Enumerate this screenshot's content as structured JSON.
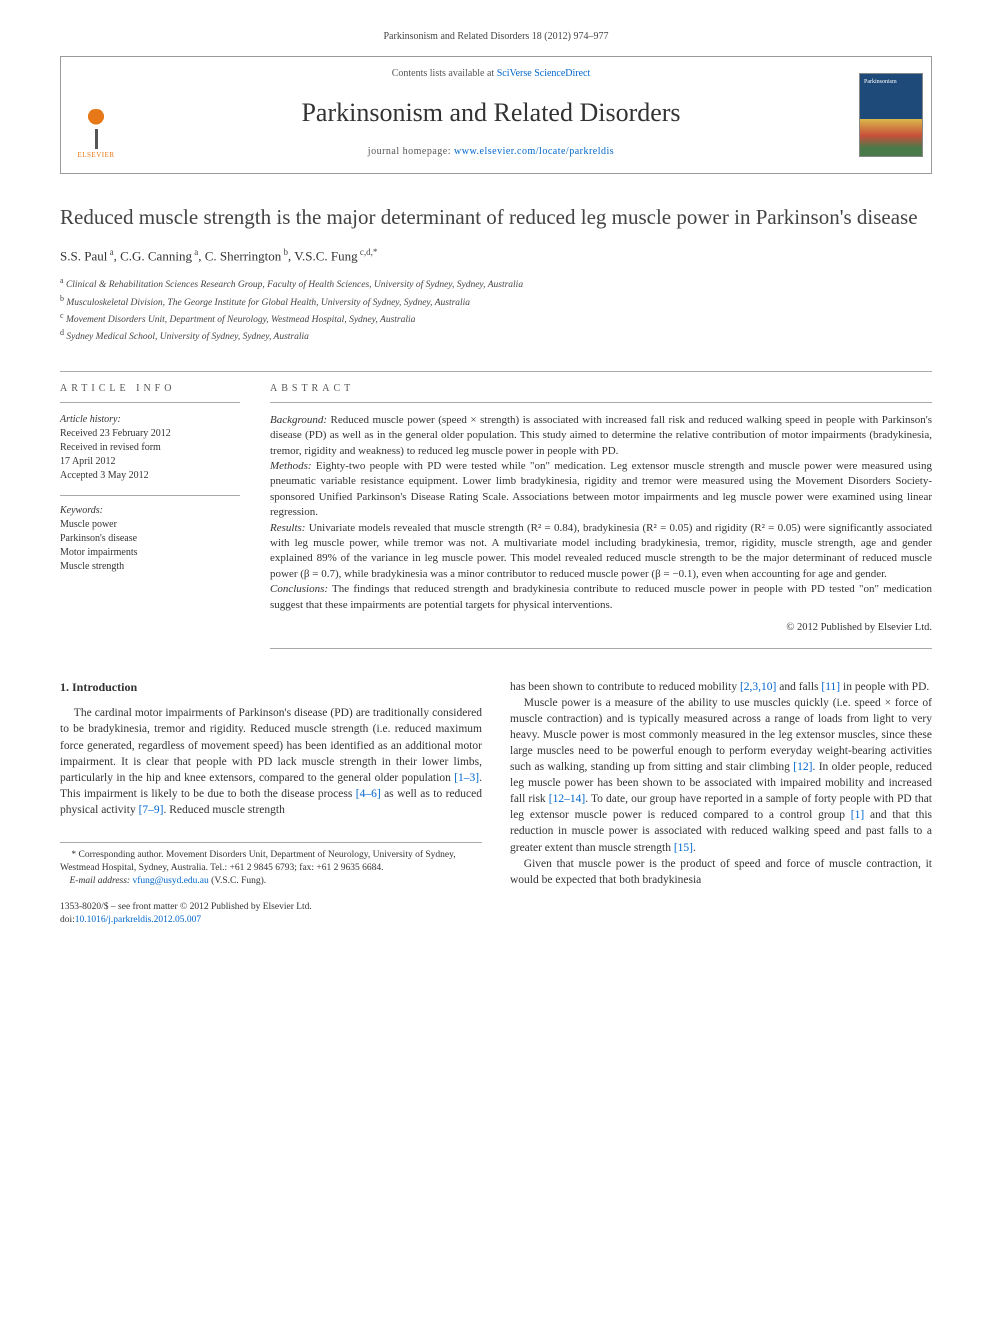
{
  "citation": "Parkinsonism and Related Disorders 18 (2012) 974–977",
  "header": {
    "contents_prefix": "Contents lists available at ",
    "contents_link": "SciVerse ScienceDirect",
    "journal_name": "Parkinsonism and Related Disorders",
    "homepage_prefix": "journal homepage: ",
    "homepage_url": "www.elsevier.com/locate/parkreldis",
    "publisher_name": "ELSEVIER"
  },
  "title": "Reduced muscle strength is the major determinant of reduced leg muscle power in Parkinson's disease",
  "authors_html": "S.S. Paul<sup> a</sup>, C.G. Canning<sup> a</sup>, C. Sherrington<sup> b</sup>, V.S.C. Fung<sup> c,d,*</sup>",
  "affiliations": [
    "a Clinical & Rehabilitation Sciences Research Group, Faculty of Health Sciences, University of Sydney, Sydney, Australia",
    "b Musculoskeletal Division, The George Institute for Global Health, University of Sydney, Sydney, Australia",
    "c Movement Disorders Unit, Department of Neurology, Westmead Hospital, Sydney, Australia",
    "d Sydney Medical School, University of Sydney, Sydney, Australia"
  ],
  "article_info": {
    "heading": "ARTICLE INFO",
    "history_label": "Article history:",
    "history": [
      "Received 23 February 2012",
      "Received in revised form",
      "17 April 2012",
      "Accepted 3 May 2012"
    ],
    "keywords_label": "Keywords:",
    "keywords": [
      "Muscle power",
      "Parkinson's disease",
      "Motor impairments",
      "Muscle strength"
    ]
  },
  "abstract": {
    "heading": "ABSTRACT",
    "sections": {
      "background_label": "Background:",
      "background": " Reduced muscle power (speed × strength) is associated with increased fall risk and reduced walking speed in people with Parkinson's disease (PD) as well as in the general older population. This study aimed to determine the relative contribution of motor impairments (bradykinesia, tremor, rigidity and weakness) to reduced leg muscle power in people with PD.",
      "methods_label": "Methods:",
      "methods": " Eighty-two people with PD were tested while \"on\" medication. Leg extensor muscle strength and muscle power were measured using pneumatic variable resistance equipment. Lower limb bradykinesia, rigidity and tremor were measured using the Movement Disorders Society-sponsored Unified Parkinson's Disease Rating Scale. Associations between motor impairments and leg muscle power were examined using linear regression.",
      "results_label": "Results:",
      "results": " Univariate models revealed that muscle strength (R² = 0.84), bradykinesia (R² = 0.05) and rigidity (R² = 0.05) were significantly associated with leg muscle power, while tremor was not. A multivariate model including bradykinesia, tremor, rigidity, muscle strength, age and gender explained 89% of the variance in leg muscle power. This model revealed reduced muscle strength to be the major determinant of reduced muscle power (β = 0.7), while bradykinesia was a minor contributor to reduced muscle power (β = −0.1), even when accounting for age and gender.",
      "conclusions_label": "Conclusions:",
      "conclusions": " The findings that reduced strength and bradykinesia contribute to reduced muscle power in people with PD tested \"on\" medication suggest that these impairments are potential targets for physical interventions."
    },
    "copyright": "© 2012 Published by Elsevier Ltd."
  },
  "body": {
    "section_number": "1.",
    "section_title": "Introduction",
    "col1_para1_pre": "The cardinal motor impairments of Parkinson's disease (PD) are traditionally considered to be bradykinesia, tremor and rigidity. Reduced muscle strength (i.e. reduced maximum force generated, regardless of movement speed) has been identified as an additional motor impairment. It is clear that people with PD lack muscle strength in their lower limbs, particularly in the hip and knee extensors, compared to the general older population ",
    "col1_ref1": "[1–3]",
    "col1_mid1": ". This impairment is likely to be due to both the disease process ",
    "col1_ref2": "[4–6]",
    "col1_mid2": " as well as to reduced physical activity ",
    "col1_ref3": "[7–9]",
    "col1_end": ". Reduced muscle strength",
    "col2_pre": "has been shown to contribute to reduced mobility ",
    "col2_ref1": "[2,3,10]",
    "col2_mid1": " and falls ",
    "col2_ref2": "[11]",
    "col2_end1": " in people with PD.",
    "col2_para2_pre": "Muscle power is a measure of the ability to use muscles quickly (i.e. speed × force of muscle contraction) and is typically measured across a range of loads from light to very heavy. Muscle power is most commonly measured in the leg extensor muscles, since these large muscles need to be powerful enough to perform everyday weight-bearing activities such as walking, standing up from sitting and stair climbing ",
    "col2_ref3": "[12]",
    "col2_mid2": ". In older people, reduced leg muscle power has been shown to be associated with impaired mobility and increased fall risk ",
    "col2_ref4": "[12–14]",
    "col2_mid3": ". To date, our group have reported in a sample of forty people with PD that leg extensor muscle power is reduced compared to a control group ",
    "col2_ref5": "[1]",
    "col2_mid4": " and that this reduction in muscle power is associated with reduced walking speed and past falls to a greater extent than muscle strength ",
    "col2_ref6": "[15]",
    "col2_end2": ".",
    "col2_para3": "Given that muscle power is the product of speed and force of muscle contraction, it would be expected that both bradykinesia"
  },
  "footnote": {
    "corr": "* Corresponding author. Movement Disorders Unit, Department of Neurology, University of Sydney, Westmead Hospital, Sydney, Australia. Tel.: +61 2 9845 6793; fax: +61 2 9635 6684.",
    "email_label": "E-mail address: ",
    "email": "vfung@usyd.edu.au",
    "email_suffix": " (V.S.C. Fung)."
  },
  "footer": {
    "line1": "1353-8020/$ – see front matter © 2012 Published by Elsevier Ltd.",
    "doi_prefix": "doi:",
    "doi": "10.1016/j.parkreldis.2012.05.007"
  },
  "colors": {
    "link": "#0066cc",
    "rule": "#aaaaaa",
    "text": "#333333",
    "elsevier_orange": "#e67817"
  }
}
